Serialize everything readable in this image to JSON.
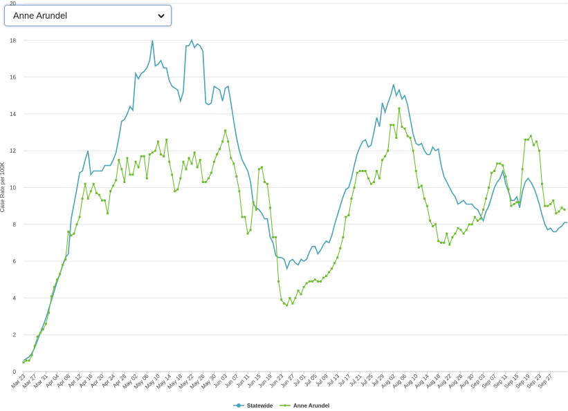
{
  "region_select": {
    "value": "Anne Arundel"
  },
  "colors": {
    "statewide": "#4aa3b8",
    "county": "#6cbe2e",
    "grid": "#e6e6e6",
    "axis": "#c9c9c9"
  },
  "chart_data": {
    "type": "line",
    "ylabel": "Case Rate per 100K",
    "ylim": [
      0,
      20
    ],
    "yticks": [
      0,
      2,
      4,
      6,
      8,
      10,
      12,
      14,
      16,
      18,
      20
    ],
    "grid": true,
    "legend_position": "bottom",
    "xticks": [
      "Mar 23",
      "Mar 27",
      "Mar 31",
      "Apr 04",
      "Apr 08",
      "Apr 12",
      "Apr 16",
      "Apr 20",
      "Apr 24",
      "Apr 28",
      "May 02",
      "May 06",
      "May 10",
      "May 14",
      "May 18",
      "May 22",
      "May 26",
      "May 30",
      "Jun 03",
      "Jun 07",
      "Jun 11",
      "Jun 15",
      "Jun 19",
      "Jun 23",
      "Jun 27",
      "Jul 01",
      "Jul 05",
      "Jul 09",
      "Jul 13",
      "Jul 17",
      "Jul 21",
      "Jul 25",
      "Jul 29",
      "Aug 02",
      "Aug 06",
      "Aug 10",
      "Aug 14",
      "Aug 18",
      "Aug 22",
      "Aug 26",
      "Aug 30",
      "Sep 03",
      "Sep 07",
      "Sep 11",
      "Sep 15",
      "Sep 19",
      "Sep 23",
      "Sep 27"
    ],
    "series": [
      {
        "name": "Statewide",
        "values": [
          0.6,
          0.7,
          0.8,
          1.0,
          1.3,
          1.7,
          2.1,
          2.5,
          2.9,
          3.4,
          3.9,
          4.4,
          4.9,
          5.3,
          5.8,
          6.2,
          6.4,
          8.3,
          9.1,
          9.9,
          10.8,
          10.9,
          11.5,
          12.0,
          10.7,
          10.9,
          10.9,
          10.9,
          10.9,
          11.2,
          11.2,
          11.2,
          11.5,
          11.9,
          12.7,
          13.6,
          13.7,
          14.0,
          14.4,
          14.2,
          16.2,
          15.9,
          16.2,
          16.3,
          16.5,
          16.9,
          18.0,
          16.6,
          16.7,
          16.9,
          16.5,
          16.5,
          15.8,
          15.5,
          15.4,
          15.3,
          14.7,
          15.2,
          17.7,
          17.7,
          18.0,
          17.6,
          17.8,
          17.7,
          17.4,
          14.6,
          14.5,
          14.6,
          15.5,
          15.4,
          15.3,
          14.7,
          15.4,
          15.5,
          14.6,
          13.6,
          12.7,
          12.0,
          11.5,
          11.2,
          10.9,
          10.3,
          9.1,
          8.9,
          8.8,
          8.6,
          8.3,
          8.3,
          7.3,
          7.0,
          6.3,
          6.2,
          6.2,
          6.1,
          5.6,
          6.0,
          6.1,
          5.9,
          5.8,
          6.1,
          6.0,
          6.1,
          6.5,
          6.8,
          6.8,
          6.4,
          6.6,
          6.9,
          7.1,
          7.0,
          7.4,
          8.0,
          8.5,
          9.0,
          9.5,
          9.9,
          10.0,
          10.5,
          11.2,
          11.8,
          12.2,
          12.5,
          12.6,
          12.2,
          12.3,
          13.0,
          13.8,
          13.3,
          14.6,
          14.1,
          14.6,
          15.0,
          15.6,
          15.0,
          15.3,
          14.8,
          15.0,
          14.5,
          13.7,
          12.9,
          12.4,
          12.3,
          12.4,
          12.0,
          11.8,
          11.8,
          12.2,
          12.0,
          12.1,
          11.2,
          10.6,
          10.3,
          10.0,
          9.7,
          9.5,
          9.1,
          9.2,
          9.3,
          9.1,
          9.1,
          9.1,
          8.9,
          8.8,
          8.5,
          8.2,
          8.7,
          9.0,
          9.5,
          10.0,
          10.3,
          10.5,
          10.9,
          10.2,
          9.8,
          9.3,
          9.3,
          9.5,
          8.9,
          9.8,
          10.3,
          10.5,
          10.3,
          10.0,
          9.6,
          9.1,
          8.5,
          8.0,
          7.7,
          7.8,
          7.6,
          7.6,
          7.8,
          7.9,
          8.1,
          8.1
        ]
      },
      {
        "name": "Anne Arundel",
        "values": [
          0.5,
          0.6,
          0.6,
          0.9,
          1.4,
          1.9,
          2.1,
          2.3,
          2.6,
          3.2,
          4.1,
          4.6,
          5.0,
          5.3,
          5.8,
          6.1,
          7.6,
          7.4,
          7.5,
          8.0,
          8.4,
          9.4,
          10.2,
          9.4,
          9.8,
          10.2,
          9.7,
          9.6,
          9.3,
          9.3,
          8.6,
          9.8,
          10.1,
          10.4,
          11.5,
          11.0,
          10.3,
          11.6,
          10.7,
          10.7,
          11.4,
          11.1,
          11.7,
          11.7,
          10.5,
          11.8,
          11.9,
          12.0,
          12.5,
          11.8,
          11.7,
          12.6,
          11.4,
          10.7,
          9.8,
          9.9,
          10.5,
          11.4,
          11.0,
          11.6,
          11.3,
          11.9,
          11.1,
          11.5,
          10.3,
          10.3,
          10.5,
          10.8,
          11.4,
          11.8,
          12.1,
          12.5,
          13.1,
          12.5,
          11.6,
          11.3,
          10.6,
          9.8,
          8.4,
          8.4,
          7.5,
          7.7,
          9.2,
          8.8,
          11.0,
          11.1,
          10.3,
          10.2,
          8.9,
          7.3,
          7.3,
          4.9,
          3.9,
          3.7,
          3.6,
          4.0,
          3.7,
          4.0,
          4.4,
          4.2,
          4.6,
          4.8,
          4.9,
          4.9,
          5.0,
          4.9,
          4.9,
          5.1,
          5.2,
          5.4,
          5.6,
          5.9,
          6.2,
          6.7,
          7.3,
          8.4,
          8.5,
          9.4,
          10.0,
          10.8,
          10.9,
          10.9,
          10.9,
          10.5,
          10.2,
          10.3,
          10.9,
          10.5,
          11.5,
          11.7,
          12.0,
          13.4,
          13.4,
          12.7,
          14.3,
          13.3,
          13.2,
          12.8,
          12.7,
          12.0,
          10.9,
          10.0,
          10.1,
          9.4,
          9.0,
          8.2,
          7.9,
          8.0,
          7.1,
          7.0,
          7.0,
          7.5,
          6.9,
          7.3,
          7.5,
          7.8,
          7.7,
          7.5,
          7.7,
          8.0,
          8.0,
          8.4,
          8.2,
          8.3,
          8.8,
          9.4,
          10.0,
          10.8,
          10.9,
          11.3,
          11.3,
          11.2,
          10.6,
          9.9,
          9.0,
          9.1,
          9.2,
          9.2,
          11.0,
          12.6,
          12.6,
          12.8,
          12.3,
          12.5,
          12.0,
          10.2,
          9.0,
          9.0,
          9.1,
          9.3,
          8.6,
          8.7,
          8.9,
          8.8
        ]
      }
    ]
  }
}
